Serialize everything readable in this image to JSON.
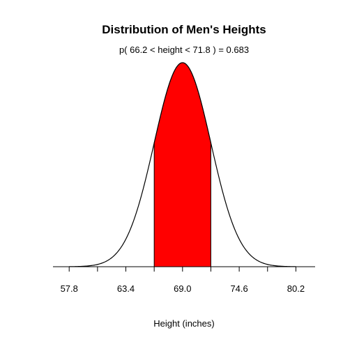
{
  "chart_data": {
    "type": "area",
    "title": "Distribution of Men's Heights",
    "subtitle": "p( 66.2 < height < 71.8 ) = 0.683",
    "xlabel": "Height (inches)",
    "ylabel": "",
    "distribution": {
      "name": "normal",
      "mean": 69.0,
      "sd": 2.8
    },
    "shaded_interval": [
      66.2,
      71.8
    ],
    "probability": 0.683,
    "x_range": [
      57.8,
      80.2
    ],
    "xlim": [
      56.2,
      82.1
    ],
    "tick_labels": [
      "57.8",
      "63.4",
      "69.0",
      "74.6",
      "80.2"
    ],
    "tick_values": [
      57.8,
      60.6,
      63.4,
      66.2,
      69.0,
      71.8,
      74.6,
      77.4,
      80.2
    ],
    "fill_color": "#ff0000",
    "line_color": "#000000",
    "grid": false,
    "legend": "none"
  }
}
